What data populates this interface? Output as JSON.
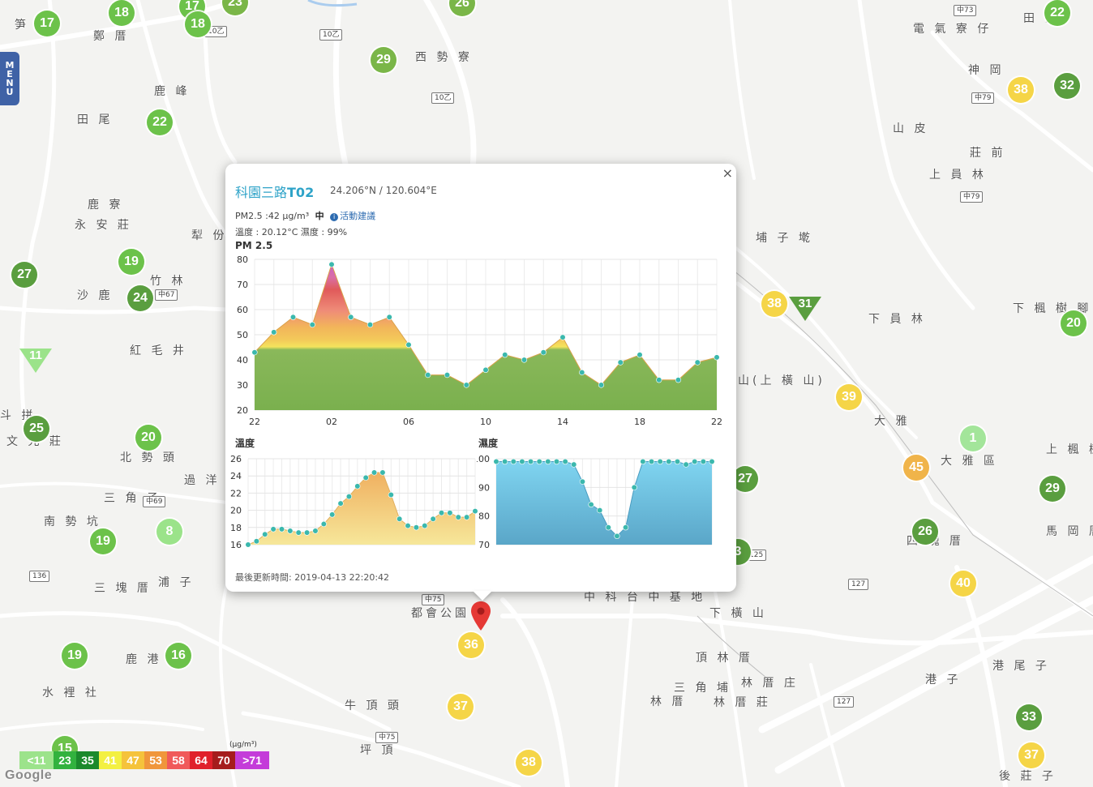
{
  "menu": {
    "letters": [
      "M",
      "E",
      "N",
      "U"
    ]
  },
  "places": [
    {
      "t": "笋 寮",
      "x": 18,
      "y": 28
    },
    {
      "t": "鄭 厝",
      "x": 115,
      "y": 42
    },
    {
      "t": "西 勢 寮",
      "x": 512,
      "y": 68
    },
    {
      "t": "鹿 峰",
      "x": 190,
      "y": 110
    },
    {
      "t": "田 尾",
      "x": 95,
      "y": 145
    },
    {
      "t": "鹿 寮",
      "x": 108,
      "y": 250
    },
    {
      "t": "永 安 莊",
      "x": 92,
      "y": 275
    },
    {
      "t": "犁 份",
      "x": 236,
      "y": 288
    },
    {
      "t": "竹 林",
      "x": 185,
      "y": 344
    },
    {
      "t": "沙 鹿",
      "x": 95,
      "y": 362
    },
    {
      "t": "紅 毛 井",
      "x": 160,
      "y": 430
    },
    {
      "t": "斗 拼",
      "x": 0,
      "y": 510
    },
    {
      "t": "文 光 莊",
      "x": 8,
      "y": 542
    },
    {
      "t": "北 勢 頭",
      "x": 148,
      "y": 562
    },
    {
      "t": "過 洋 仔",
      "x": 227,
      "y": 590
    },
    {
      "t": "三 角 子",
      "x": 128,
      "y": 612
    },
    {
      "t": "南 勢 坑",
      "x": 54,
      "y": 641
    },
    {
      "t": "三 塊 厝",
      "x": 116,
      "y": 723
    },
    {
      "t": "浦 子",
      "x": 195,
      "y": 716
    },
    {
      "t": "鹿 港 寮",
      "x": 155,
      "y": 811
    },
    {
      "t": "水 裡 社",
      "x": 52,
      "y": 852
    },
    {
      "t": "牛 頂 頭",
      "x": 425,
      "y": 868
    },
    {
      "t": "坪 頂",
      "x": 444,
      "y": 923
    },
    {
      "t": "電 氣 寮 仔",
      "x": 1126,
      "y": 33
    },
    {
      "t": "田 寮",
      "x": 1262,
      "y": 20
    },
    {
      "t": "神 岡",
      "x": 1194,
      "y": 84
    },
    {
      "t": "山 皮",
      "x": 1101,
      "y": 156
    },
    {
      "t": "莊 前",
      "x": 1196,
      "y": 186
    },
    {
      "t": "上 員 林",
      "x": 1146,
      "y": 213
    },
    {
      "t": "埔 子 墘",
      "x": 932,
      "y": 291
    },
    {
      "t": "下 員 林",
      "x": 1071,
      "y": 391
    },
    {
      "t": "下 楓 樹 腳",
      "x": 1249,
      "y": 378
    },
    {
      "t": "山(上 橫 山)",
      "x": 910,
      "y": 467
    },
    {
      "t": "大 雅",
      "x": 1078,
      "y": 517
    },
    {
      "t": "大 雅 區",
      "x": 1160,
      "y": 566
    },
    {
      "t": "上 楓 樹",
      "x": 1290,
      "y": 552
    },
    {
      "t": "四 塊 厝",
      "x": 1118,
      "y": 665
    },
    {
      "t": "馬 岡 厝",
      "x": 1290,
      "y": 653
    },
    {
      "t": "中 科 台 中 基 地",
      "x": 720,
      "y": 734
    },
    {
      "t": "下 橫 山",
      "x": 875,
      "y": 754
    },
    {
      "t": "頂 林 厝",
      "x": 858,
      "y": 809
    },
    {
      "t": "三 角 埔",
      "x": 831,
      "y": 846
    },
    {
      "t": "林 厝 庄",
      "x": 914,
      "y": 840
    },
    {
      "t": "林 厝",
      "x": 802,
      "y": 863
    },
    {
      "t": "林 厝 莊",
      "x": 880,
      "y": 864
    },
    {
      "t": "港 子",
      "x": 1141,
      "y": 836
    },
    {
      "t": "港 尾 子",
      "x": 1224,
      "y": 819
    },
    {
      "t": "後 莊 子",
      "x": 1232,
      "y": 955
    },
    {
      "t": "都會公園",
      "x": 507,
      "y": 754
    }
  ],
  "shields": [
    {
      "t": "中73",
      "x": 1188,
      "y": 13
    },
    {
      "t": "中79",
      "x": 1210,
      "y": 121
    },
    {
      "t": "中79",
      "x": 1196,
      "y": 243
    },
    {
      "t": "中67",
      "x": 203,
      "y": 364
    },
    {
      "t": "中69",
      "x": 188,
      "y": 619
    },
    {
      "t": "中75",
      "x": 532,
      "y": 740
    },
    {
      "t": "中75",
      "x": 475,
      "y": 910
    },
    {
      "t": "125",
      "x": 932,
      "y": 685
    },
    {
      "t": "127",
      "x": 1058,
      "y": 721
    },
    {
      "t": "127",
      "x": 1040,
      "y": 866
    },
    {
      "t": "136",
      "x": 48,
      "y": 711
    },
    {
      "t": "10乙",
      "x": 264,
      "y": 39
    },
    {
      "t": "10乙",
      "x": 406,
      "y": 43
    },
    {
      "t": "10乙",
      "x": 544,
      "y": 121
    }
  ],
  "markers": [
    {
      "v": "17",
      "x": 58,
      "y": 29,
      "c": "#6cc24a"
    },
    {
      "v": "18",
      "x": 150,
      "y": 16,
      "c": "#6cc24a"
    },
    {
      "v": "17",
      "x": 237,
      "y": 8,
      "c": "#6cc24a"
    },
    {
      "v": "18",
      "x": 244,
      "y": 30,
      "c": "#6cc24a"
    },
    {
      "v": "23",
      "x": 290,
      "y": 3,
      "c": "#7ab648"
    },
    {
      "v": "26",
      "x": 570,
      "y": 4,
      "c": "#7ab648"
    },
    {
      "v": "29",
      "x": 473,
      "y": 74,
      "c": "#7ab648"
    },
    {
      "v": "22",
      "x": 197,
      "y": 151,
      "c": "#6cc24a"
    },
    {
      "v": "19",
      "x": 162,
      "y": 323,
      "c": "#6cc24a"
    },
    {
      "v": "27",
      "x": 30,
      "y": 339,
      "c": "#5a9e3f"
    },
    {
      "v": "24",
      "x": 173,
      "y": 368,
      "c": "#5a9e3f"
    },
    {
      "v": "25",
      "x": 45,
      "y": 529,
      "c": "#5a9e3f"
    },
    {
      "v": "20",
      "x": 183,
      "y": 540,
      "c": "#6cc24a"
    },
    {
      "v": "19",
      "x": 127,
      "y": 668,
      "c": "#6cc24a"
    },
    {
      "v": "8",
      "x": 209,
      "y": 656,
      "c": "#9be38a"
    },
    {
      "v": "19",
      "x": 92,
      "y": 809,
      "c": "#6cc24a"
    },
    {
      "v": "16",
      "x": 220,
      "y": 809,
      "c": "#6cc24a"
    },
    {
      "v": "15",
      "x": 80,
      "y": 924,
      "c": "#6cc24a"
    },
    {
      "v": "22",
      "x": 1304,
      "y": 16,
      "c": "#6cc24a"
    },
    {
      "v": "38",
      "x": 1259,
      "y": 111,
      "c": "#f5d547"
    },
    {
      "v": "32",
      "x": 1316,
      "y": 106,
      "c": "#5a9e3f"
    },
    {
      "v": "38",
      "x": 955,
      "y": 375,
      "c": "#f5d547"
    },
    {
      "v": "20",
      "x": 1324,
      "y": 399,
      "c": "#6cc24a"
    },
    {
      "v": "39",
      "x": 1047,
      "y": 490,
      "c": "#f5d547"
    },
    {
      "v": "1",
      "x": 1200,
      "y": 541,
      "c": "#a3e59a"
    },
    {
      "v": "45",
      "x": 1130,
      "y": 577,
      "c": "#f0b44a"
    },
    {
      "v": "27",
      "x": 919,
      "y": 591,
      "c": "#5a9e3f"
    },
    {
      "v": "29",
      "x": 1298,
      "y": 603,
      "c": "#5a9e3f"
    },
    {
      "v": "26",
      "x": 1141,
      "y": 656,
      "c": "#5a9e3f"
    },
    {
      "v": "3",
      "x": 910,
      "y": 681,
      "c": "#5a9e3f"
    },
    {
      "v": "40",
      "x": 1188,
      "y": 720,
      "c": "#f5d547"
    },
    {
      "v": "36",
      "x": 581,
      "y": 796,
      "c": "#f5d547"
    },
    {
      "v": "37",
      "x": 568,
      "y": 872,
      "c": "#f5d547"
    },
    {
      "v": "38",
      "x": 652,
      "y": 941,
      "c": "#f5d547"
    },
    {
      "v": "33",
      "x": 1269,
      "y": 885,
      "c": "#5a9e3f"
    },
    {
      "v": "37",
      "x": 1272,
      "y": 932,
      "c": "#f5d547"
    }
  ],
  "triangles": [
    {
      "v": "31",
      "x": 993,
      "y": 378,
      "c": "#5a9e3f"
    },
    {
      "v": "11",
      "x": 44,
      "y": 442,
      "c": "#9be38a"
    }
  ],
  "legend": {
    "unit": "(μg/m³)",
    "cells": [
      {
        "t": "<11",
        "c": "#9ce38b"
      },
      {
        "t": "23",
        "c": "#32b23e"
      },
      {
        "t": "35",
        "c": "#1c8a2c"
      },
      {
        "t": "41",
        "c": "#f3f042"
      },
      {
        "t": "47",
        "c": "#f5c33b"
      },
      {
        "t": "53",
        "c": "#f0963b"
      },
      {
        "t": "58",
        "c": "#f05a5a"
      },
      {
        "t": "64",
        "c": "#e0212b"
      },
      {
        "t": "70",
        "c": "#a51d1d"
      },
      {
        "t": ">71",
        "c": "#c43cd9"
      }
    ]
  },
  "google": "Google",
  "popup": {
    "close": "×",
    "station_prefix": "科園三路",
    "station_id": "T02",
    "coords": "24.206°N / 120.604°E",
    "pm_text": "PM2.5 :42 μg/m³",
    "pm_level": "中",
    "advice_icon": "info-icon",
    "advice": "活動建議",
    "temp_humid": "溫度 : 20.12°C 濕度 : 99%",
    "updated": "最後更新時間: 2019-04-13 22:20:42"
  },
  "chart_data": [
    {
      "type": "area",
      "title": "PM 2.5",
      "x_ticks": [
        "22",
        "02",
        "06",
        "10",
        "14",
        "18",
        "22"
      ],
      "ylim": [
        20,
        80
      ],
      "y_ticks": [
        20,
        30,
        40,
        50,
        60,
        70,
        80
      ],
      "grid": true,
      "series": [
        {
          "values": [
            43,
            51,
            57,
            54,
            78,
            57,
            54,
            57,
            46,
            34,
            34,
            30,
            36,
            42,
            40,
            43,
            49,
            35,
            30,
            39,
            42,
            32,
            32,
            39,
            41
          ]
        }
      ]
    },
    {
      "type": "area",
      "title": "溫度",
      "ylim": [
        16,
        26
      ],
      "y_ticks": [
        16,
        18,
        20,
        22,
        24,
        26
      ],
      "grid": true,
      "series": [
        {
          "values": [
            16.0,
            16.4,
            17.2,
            17.8,
            17.8,
            17.6,
            17.4,
            17.4,
            17.6,
            18.4,
            19.5,
            20.8,
            21.6,
            22.8,
            23.8,
            24.4,
            24.4,
            21.8,
            19.0,
            18.2,
            18.0,
            18.2,
            19.0,
            19.7,
            19.7,
            19.2,
            19.2,
            19.9
          ]
        }
      ]
    },
    {
      "type": "area",
      "title": "濕度",
      "ylim": [
        70,
        100
      ],
      "y_ticks": [
        70,
        80,
        90,
        100
      ],
      "grid": true,
      "series": [
        {
          "values": [
            99,
            99,
            99,
            99,
            99,
            99,
            99,
            99,
            99,
            98,
            92,
            84,
            82,
            76,
            73,
            76,
            90,
            99,
            99,
            99,
            99,
            99,
            98,
            99,
            99,
            99
          ]
        }
      ]
    }
  ]
}
